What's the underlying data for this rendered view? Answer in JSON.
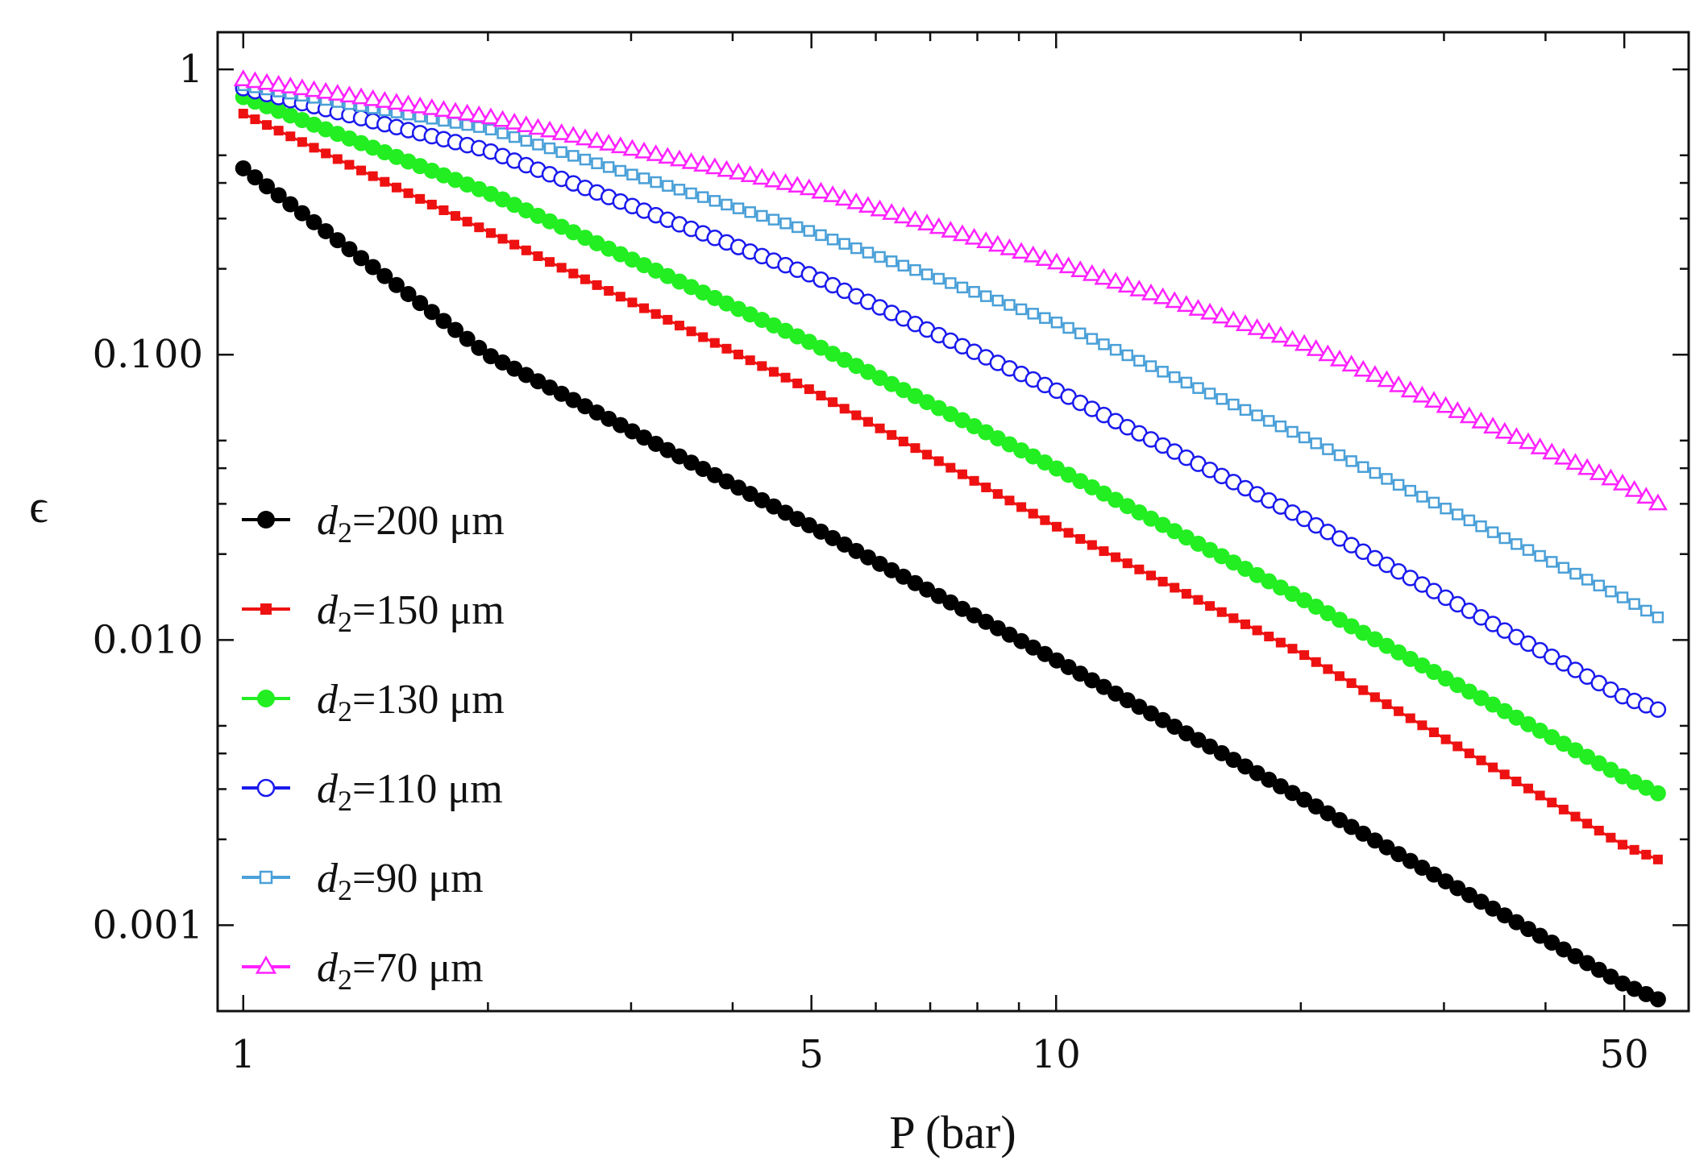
{
  "chart_data": {
    "type": "line",
    "title": "",
    "xlabel": "P (bar)",
    "ylabel": "ϵ",
    "xscale": "log",
    "yscale": "log",
    "xlim": [
      0.93,
      60
    ],
    "ylim": [
      0.0005,
      1.35
    ],
    "xticks": [
      {
        "value": 1,
        "label": "1"
      },
      {
        "value": 5,
        "label": "5"
      },
      {
        "value": 10,
        "label": "10"
      },
      {
        "value": 50,
        "label": "50"
      }
    ],
    "yticks": [
      {
        "value": 1,
        "label": "1"
      },
      {
        "value": 0.1,
        "label": "0.100"
      },
      {
        "value": 0.01,
        "label": "0.010"
      },
      {
        "value": 0.001,
        "label": "0.001"
      }
    ],
    "legend_position": "bottom-left",
    "series": [
      {
        "name": "200",
        "legend_symbol": "d",
        "legend_subscript": "2",
        "legend_value": "=200",
        "legend_unit": " μm",
        "marker": "filled-circle",
        "color": "#000000",
        "x": [
          1,
          2,
          5,
          10,
          20,
          50,
          55
        ],
        "y": [
          0.45,
          0.1,
          0.025,
          0.0085,
          0.0028,
          0.00062,
          0.00055
        ]
      },
      {
        "name": "150",
        "legend_symbol": "d",
        "legend_subscript": "2",
        "legend_value": "=150",
        "legend_unit": " μm",
        "marker": "filled-square",
        "color": "#ee1111",
        "x": [
          1,
          2,
          5,
          10,
          20,
          50,
          55
        ],
        "y": [
          0.7,
          0.27,
          0.075,
          0.025,
          0.009,
          0.0019,
          0.0017
        ]
      },
      {
        "name": "130",
        "legend_symbol": "d",
        "legend_subscript": "2",
        "legend_value": "=130",
        "legend_unit": " μm",
        "marker": "filled-circle",
        "color": "#22ee22",
        "x": [
          1,
          2,
          5,
          10,
          20,
          50,
          55
        ],
        "y": [
          0.8,
          0.37,
          0.11,
          0.04,
          0.014,
          0.0033,
          0.0029
        ]
      },
      {
        "name": "110",
        "legend_symbol": "d",
        "legend_subscript": "2",
        "legend_value": "=110",
        "legend_unit": " μm",
        "marker": "open-circle",
        "color": "#1a1aee",
        "x": [
          1,
          2,
          5,
          10,
          20,
          50,
          55
        ],
        "y": [
          0.86,
          0.52,
          0.19,
          0.075,
          0.027,
          0.0063,
          0.0057
        ]
      },
      {
        "name": "90",
        "legend_symbol": "d",
        "legend_subscript": "2",
        "legend_value": "=90",
        "legend_unit": " μm",
        "marker": "open-square",
        "color": "#4aa0d8",
        "x": [
          1,
          2,
          5,
          10,
          20,
          50,
          55
        ],
        "y": [
          0.88,
          0.62,
          0.27,
          0.13,
          0.052,
          0.014,
          0.012
        ]
      },
      {
        "name": "70",
        "legend_symbol": "d",
        "legend_subscript": "2",
        "legend_value": "=70",
        "legend_unit": " μm",
        "marker": "open-triangle",
        "color": "#ff22ff",
        "x": [
          1,
          2,
          5,
          10,
          20,
          50,
          55
        ],
        "y": [
          0.92,
          0.68,
          0.38,
          0.21,
          0.11,
          0.035,
          0.03
        ]
      }
    ]
  }
}
